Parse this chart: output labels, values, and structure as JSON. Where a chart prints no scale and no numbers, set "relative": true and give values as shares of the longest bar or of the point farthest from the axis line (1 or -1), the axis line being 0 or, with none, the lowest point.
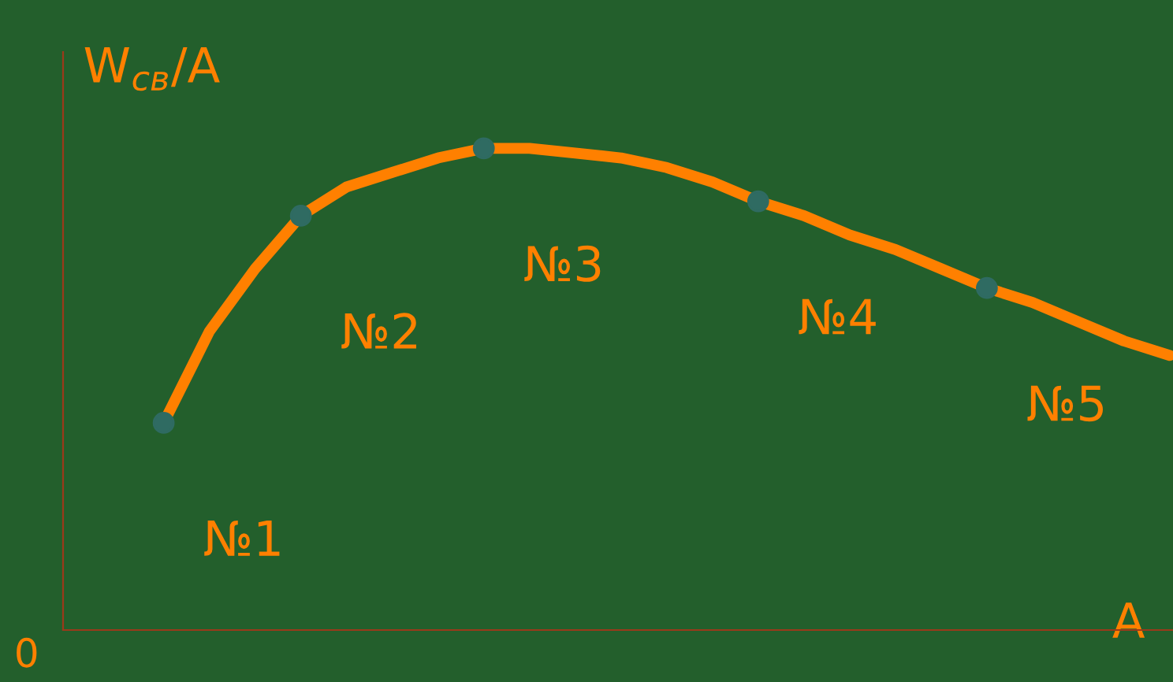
{
  "chart_data": {
    "type": "line",
    "relative": true,
    "xlabel": "A",
    "ylabel": "W$_{св}$/A",
    "categories": [
      null,
      null,
      null,
      null,
      null,
      null,
      null,
      null,
      null,
      null,
      null,
      null,
      null,
      null,
      null,
      null,
      null,
      null,
      null,
      null,
      null,
      null,
      null
    ],
    "series": [
      {
        "color": "#ff8000",
        "values": [
          0.43,
          0.62,
          0.75,
          0.86,
          0.92,
          0.95,
          0.98,
          1.0,
          1.0,
          0.99,
          0.98,
          0.96,
          0.93,
          0.89,
          0.86,
          0.82,
          0.79,
          0.75,
          0.71,
          0.68,
          0.64,
          0.6,
          0.57
        ]
      }
    ],
    "annotations": [
      "№1",
      "№2",
      "№3",
      "№4",
      "№5",
      "0"
    ]
  }
}
